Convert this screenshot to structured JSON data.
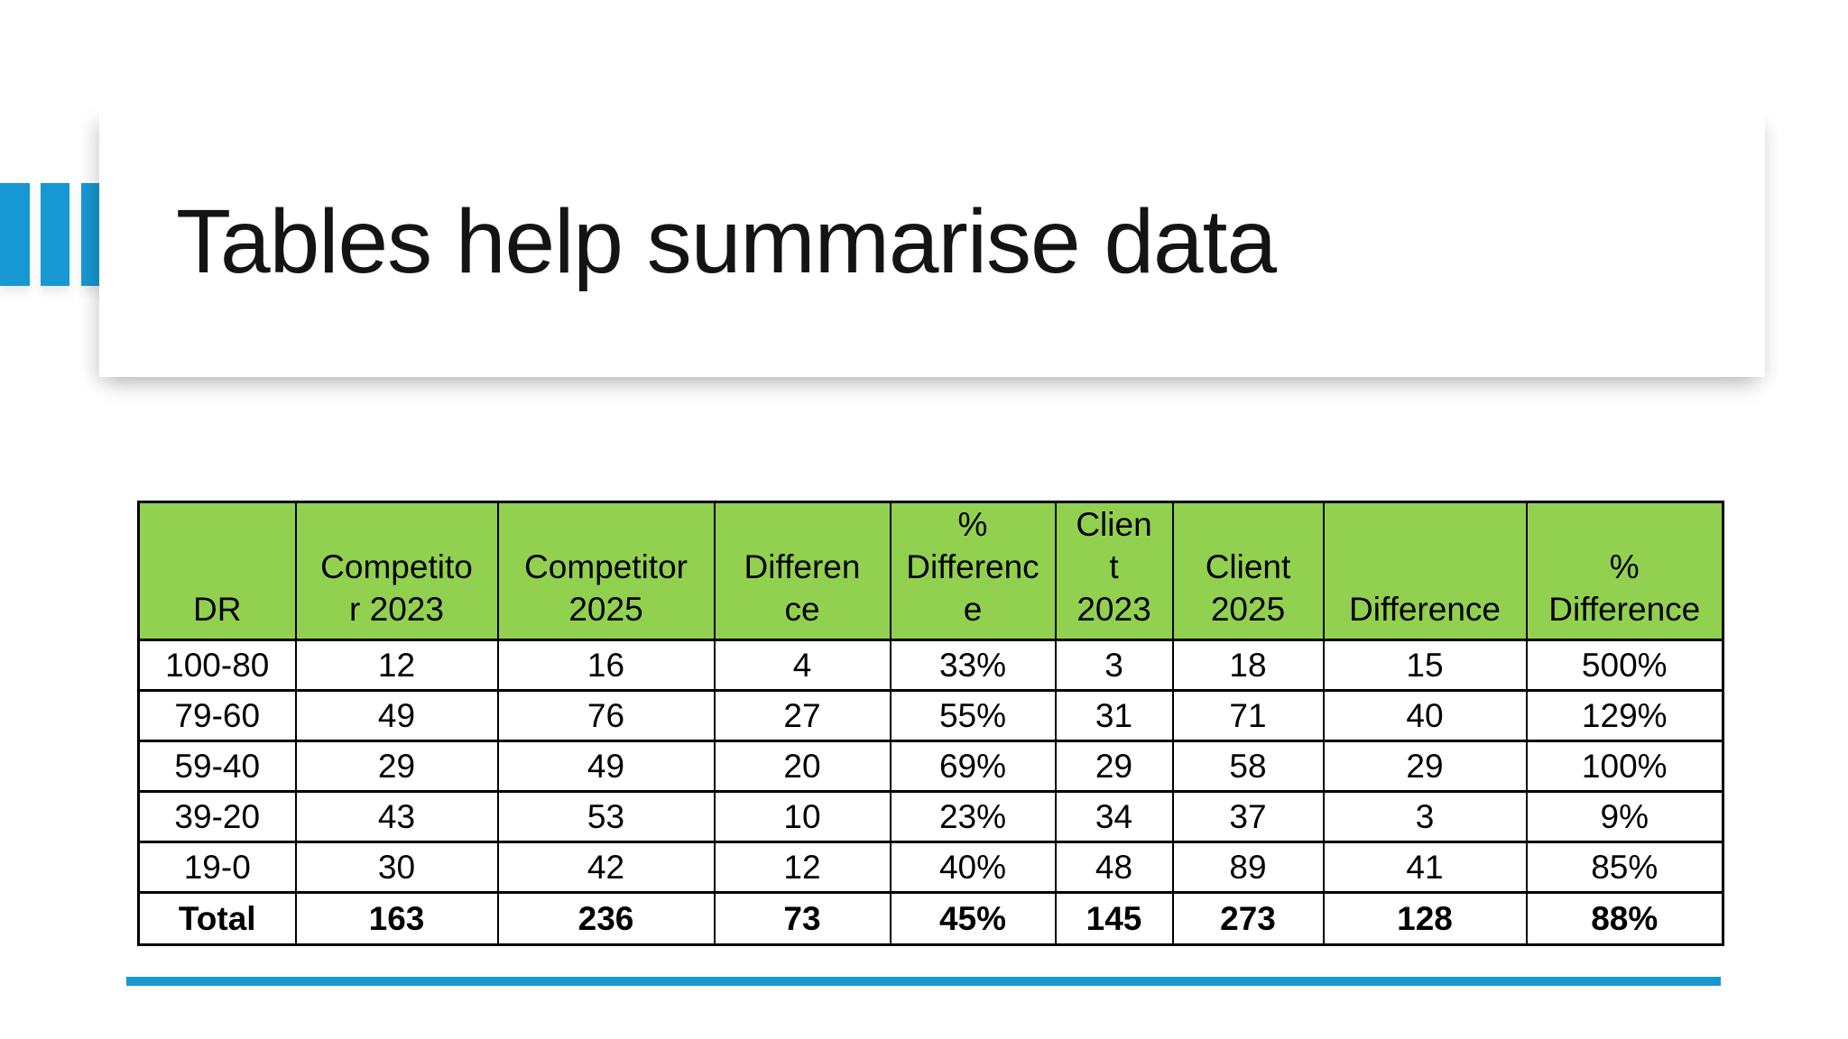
{
  "slide": {
    "title": "Tables help summarise data"
  },
  "colors": {
    "accent_blue": "#1798d3",
    "header_green": "#92d050",
    "border_black": "#000000",
    "title_text": "#141414"
  },
  "table": {
    "header": [
      "DR",
      "Competito\nr 2023",
      "Competitor\n2025",
      "Differen\nce",
      "%\nDifferenc\ne",
      "Clien\nt\n2023",
      "Client\n2025",
      "Difference",
      "%\nDifference"
    ],
    "rows": [
      [
        "100-80",
        "12",
        "16",
        "4",
        "33%",
        "3",
        "18",
        "15",
        "500%"
      ],
      [
        "79-60",
        "49",
        "76",
        "27",
        "55%",
        "31",
        "71",
        "40",
        "129%"
      ],
      [
        "59-40",
        "29",
        "49",
        "20",
        "69%",
        "29",
        "58",
        "29",
        "100%"
      ],
      [
        "39-20",
        "43",
        "53",
        "10",
        "23%",
        "34",
        "37",
        "3",
        "9%"
      ],
      [
        "19-0",
        "30",
        "42",
        "12",
        "40%",
        "48",
        "89",
        "41",
        "85%"
      ]
    ],
    "total": [
      "Total",
      "163",
      "236",
      "73",
      "45%",
      "145",
      "273",
      "128",
      "88%"
    ]
  },
  "chart_data": {
    "type": "table",
    "title": "Tables help summarise data",
    "columns": [
      "DR",
      "Competitor 2023",
      "Competitor 2025",
      "Difference",
      "% Difference",
      "Client 2023",
      "Client 2025",
      "Difference",
      "% Difference"
    ],
    "rows": [
      [
        "100-80",
        12,
        16,
        4,
        "33%",
        3,
        18,
        15,
        "500%"
      ],
      [
        "79-60",
        49,
        76,
        27,
        "55%",
        31,
        71,
        40,
        "129%"
      ],
      [
        "59-40",
        29,
        49,
        20,
        "69%",
        29,
        58,
        29,
        "100%"
      ],
      [
        "39-20",
        43,
        53,
        10,
        "23%",
        34,
        37,
        3,
        "9%"
      ],
      [
        "19-0",
        30,
        42,
        12,
        "40%",
        48,
        89,
        41,
        "85%"
      ],
      [
        "Total",
        163,
        236,
        73,
        "45%",
        145,
        273,
        128,
        "88%"
      ]
    ]
  }
}
